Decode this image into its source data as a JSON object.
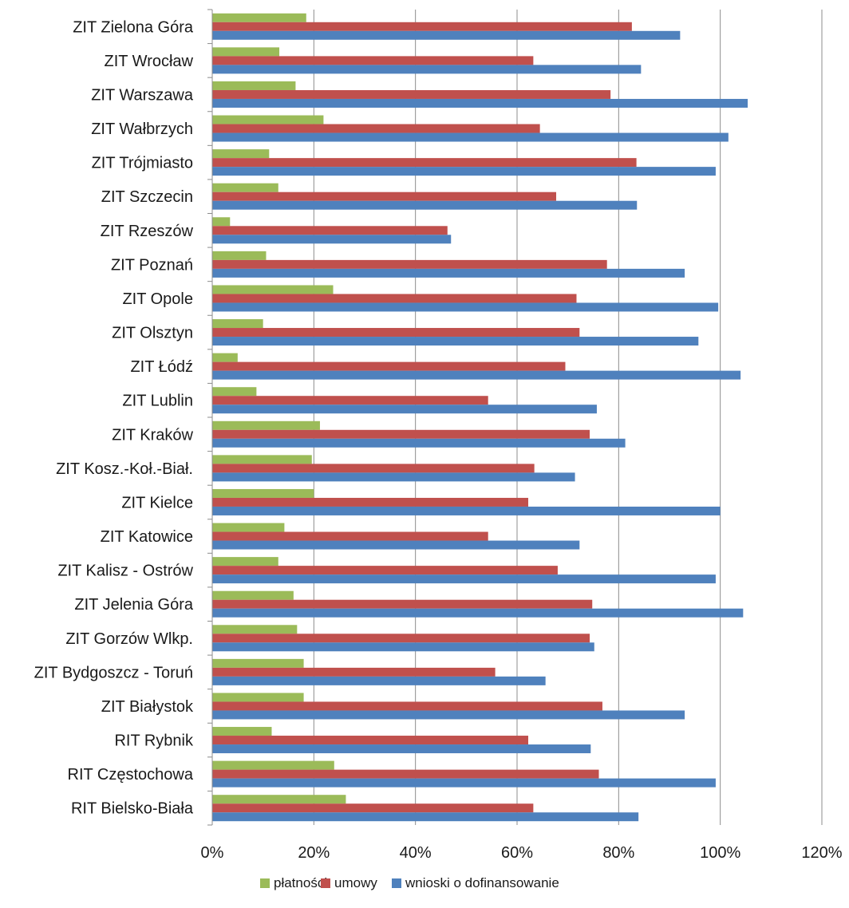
{
  "chart_data": {
    "type": "bar",
    "orientation": "horizontal",
    "title": "",
    "xlabel": "",
    "ylabel": "",
    "xlim": [
      0,
      1.2
    ],
    "x_ticks": [
      0,
      0.2,
      0.4,
      0.6,
      0.8,
      1.0,
      1.2
    ],
    "x_tick_labels": [
      "0%",
      "20%",
      "40%",
      "60%",
      "80%",
      "100%",
      "120%"
    ],
    "grid": "vertical",
    "legend_position": "bottom",
    "categories": [
      "ZIT Zielona Góra",
      "ZIT Wrocław",
      "ZIT Warszawa",
      "ZIT Wałbrzych",
      "ZIT Trójmiasto",
      "ZIT Szczecin",
      "ZIT Rzeszów",
      "ZIT Poznań",
      "ZIT Opole",
      "ZIT Olsztyn",
      "ZIT Łódź",
      "ZIT Lublin",
      "ZIT Kraków",
      "ZIT Kosz.-Koł.-Biał.",
      "ZIT Kielce",
      "ZIT Katowice",
      "ZIT Kalisz - Ostrów",
      "ZIT Jelenia Góra",
      "ZIT Gorzów Wlkp.",
      "ZIT Bydgoszcz - Toruń",
      "ZIT Białystok",
      "RIT Rybnik",
      "RIT Częstochowa",
      "RIT Bielsko-Biała"
    ],
    "series": [
      {
        "name": "płatności",
        "color": "#9bbb59",
        "values": [
          0.185,
          0.132,
          0.164,
          0.219,
          0.112,
          0.13,
          0.035,
          0.106,
          0.238,
          0.1,
          0.05,
          0.087,
          0.212,
          0.196,
          0.2,
          0.142,
          0.13,
          0.16,
          0.167,
          0.18,
          0.18,
          0.117,
          0.24,
          0.263
        ]
      },
      {
        "name": "umowy",
        "color": "#c0504d",
        "values": [
          0.826,
          0.632,
          0.784,
          0.645,
          0.835,
          0.677,
          0.463,
          0.777,
          0.717,
          0.723,
          0.695,
          0.543,
          0.743,
          0.634,
          0.622,
          0.543,
          0.68,
          0.748,
          0.743,
          0.557,
          0.768,
          0.622,
          0.761,
          0.632
        ]
      },
      {
        "name": "wnioski o dofinansowanie",
        "color": "#4f81bd",
        "values": [
          0.921,
          0.844,
          1.054,
          1.016,
          0.991,
          0.836,
          0.47,
          0.93,
          0.996,
          0.957,
          1.04,
          0.757,
          0.813,
          0.714,
          1.0,
          0.723,
          0.991,
          1.045,
          0.752,
          0.656,
          0.93,
          0.745,
          0.991,
          0.839
        ]
      }
    ]
  }
}
